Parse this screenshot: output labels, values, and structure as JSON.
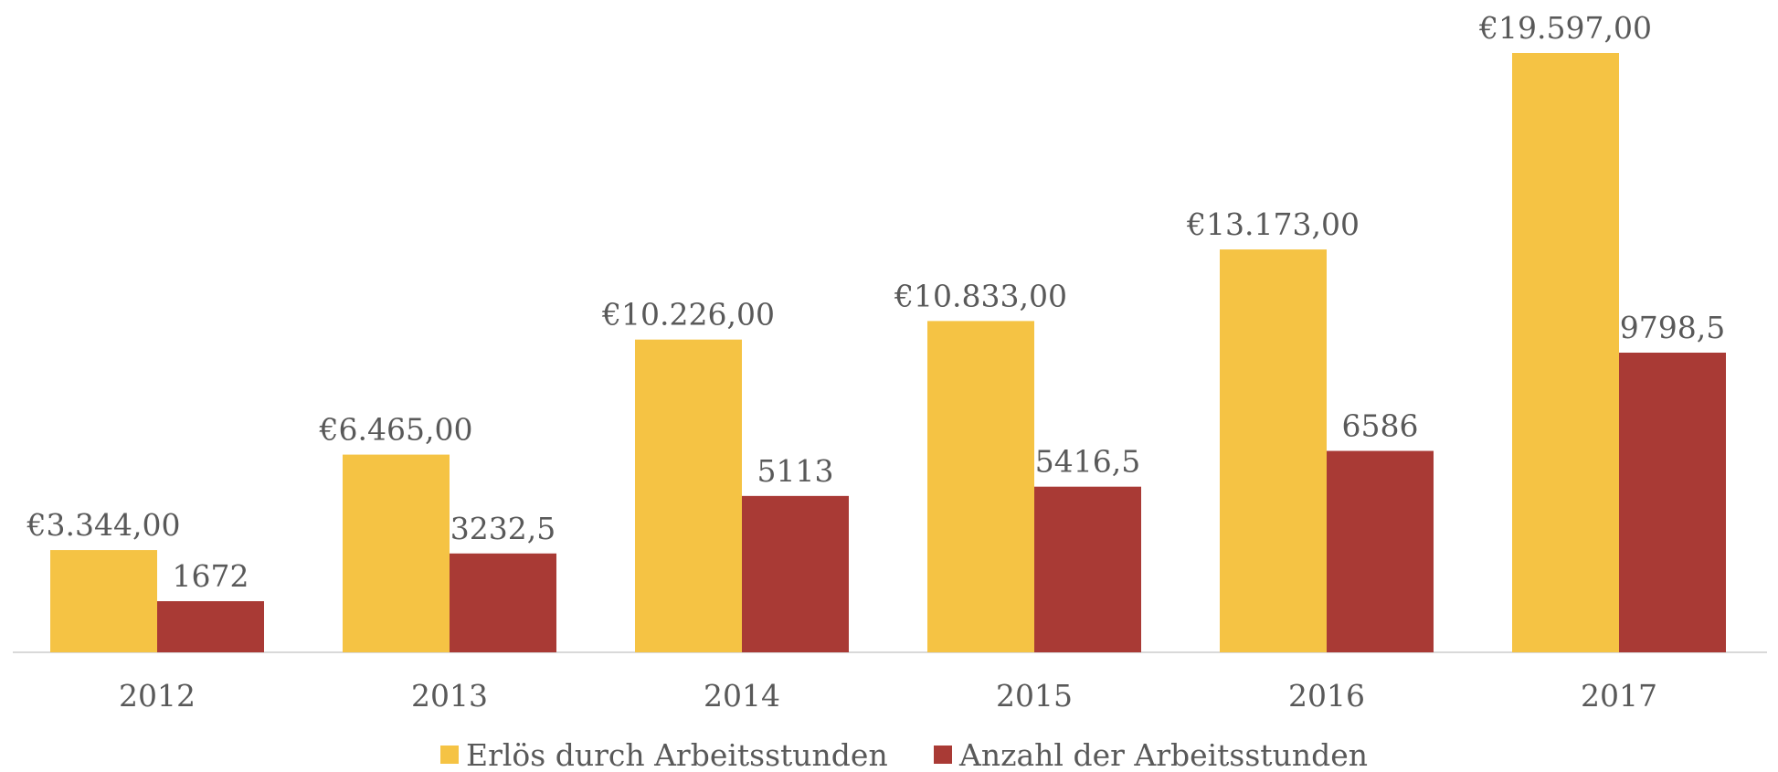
{
  "chart_data": {
    "type": "bar",
    "categories": [
      "2012",
      "2013",
      "2014",
      "2015",
      "2016",
      "2017"
    ],
    "series": [
      {
        "name": "Erlös durch Arbeitsstunden",
        "color": "#f5c344",
        "values": [
          3344,
          6465,
          10226,
          10833,
          13173,
          19597
        ],
        "value_labels": [
          "€3.344,00",
          "€6.465,00",
          "€10.226,00",
          "€10.833,00",
          "€13.173,00",
          "€19.597,00"
        ]
      },
      {
        "name": "Anzahl der Arbeitsstunden",
        "color": "#a93a35",
        "values": [
          1672,
          3232.5,
          5113,
          5416.5,
          6586,
          9798.5
        ],
        "value_labels": [
          "1672",
          "3232,5",
          "5113",
          "5416,5",
          "6586",
          "9798,5"
        ]
      }
    ]
  }
}
